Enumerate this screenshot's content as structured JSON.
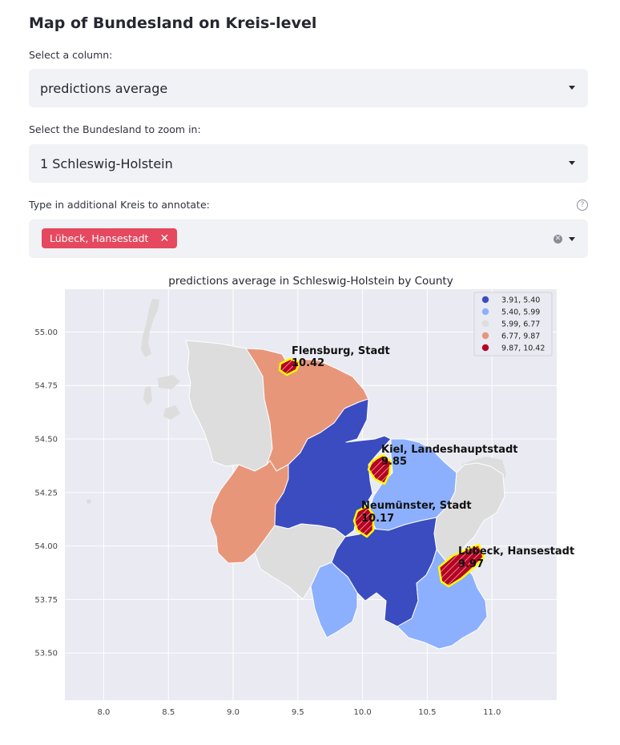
{
  "page": {
    "title": "Map of Bundesland on Kreis-level"
  },
  "column_select": {
    "label": "Select a column:",
    "value": "predictions average"
  },
  "bundesland_select": {
    "label": "Select the Bundesland to zoom in:",
    "value": "1 Schleswig-Holstein"
  },
  "kreis_multiselect": {
    "label": "Type in additional Kreis to annotate:",
    "help_icon": "question-circle-icon",
    "selected": [
      "Lübeck, Hansestadt"
    ],
    "remove_icon": "close-icon",
    "clear_icon": "clear-circle-icon"
  },
  "chart_data": {
    "type": "choropleth",
    "title": "predictions average in Schleswig-Holstein by County",
    "xlabel": "",
    "ylabel": "",
    "xlim": [
      7.7,
      11.5
    ],
    "ylim": [
      53.28,
      55.2
    ],
    "x_ticks": [
      "8.0",
      "8.5",
      "9.0",
      "9.5",
      "10.0",
      "10.5",
      "11.0"
    ],
    "y_ticks": [
      "53.50",
      "53.75",
      "54.00",
      "54.25",
      "54.50",
      "54.75",
      "55.00"
    ],
    "grid": true,
    "legend_position": "top-right",
    "colors": {
      "class1": "#3b4cc0",
      "class2": "#8db0fe",
      "class3": "#dddddd",
      "class4": "#e8967a",
      "class5": "#b40426",
      "highlight": "#ffff00",
      "background": "#eaeaf2"
    },
    "legend": [
      {
        "label": "3.91,  5.40",
        "color": "#3b4cc0"
      },
      {
        "label": "5.40,  5.99",
        "color": "#8db0fe"
      },
      {
        "label": "5.99,  6.77",
        "color": "#dddddd"
      },
      {
        "label": "6.77,  9.87",
        "color": "#e8967a"
      },
      {
        "label": "9.87, 10.42",
        "color": "#b40426"
      }
    ],
    "annotations": [
      {
        "name": "Flensburg, Stadt",
        "value": "10.42"
      },
      {
        "name": "Kiel, Landeshauptstadt",
        "value": "9.85"
      },
      {
        "name": "Neumünster, Stadt",
        "value": "10.17"
      },
      {
        "name": "Lübeck, Hansestadt",
        "value": "9.97"
      }
    ]
  }
}
